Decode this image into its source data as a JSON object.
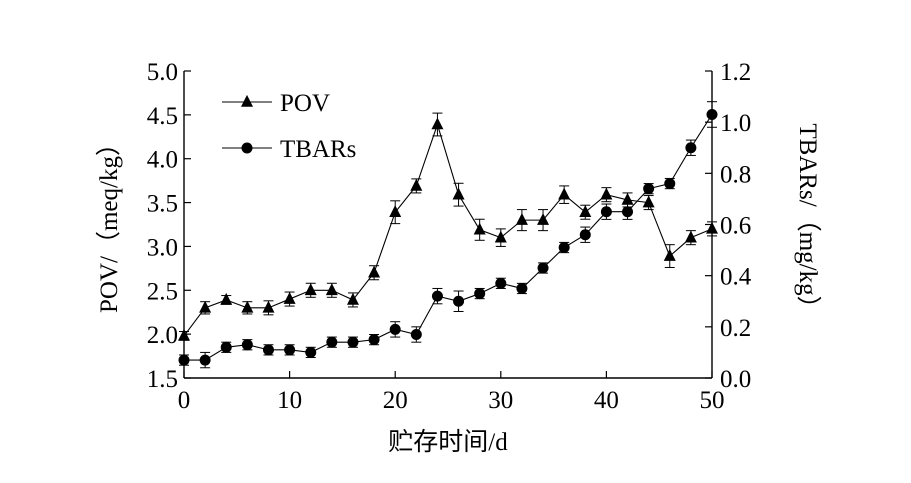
{
  "chart_data": {
    "type": "line",
    "x": [
      0,
      2,
      4,
      6,
      8,
      10,
      12,
      14,
      16,
      18,
      20,
      22,
      24,
      26,
      28,
      30,
      32,
      34,
      36,
      38,
      40,
      42,
      44,
      46,
      48,
      50
    ],
    "xlabel": "贮存时间/d",
    "xlim": [
      0,
      50
    ],
    "xticks": [
      0,
      10,
      20,
      30,
      40,
      50
    ],
    "ylabel_left": "POV/（meq/kg）",
    "ylim_left": [
      1.5,
      5.0
    ],
    "yticks_left": [
      "1.5",
      "2.0",
      "2.5",
      "3.0",
      "3.5",
      "4.0",
      "4.5",
      "5.0"
    ],
    "ylabel_right": "TBARs/（mg/kg）",
    "ylim_right": [
      0.0,
      1.2
    ],
    "yticks_right": [
      "0.0",
      "0.2",
      "0.4",
      "0.6",
      "0.8",
      "1.0",
      "1.2"
    ],
    "legend_position": "top-left",
    "grid": false,
    "series": [
      {
        "name": "POV",
        "axis": "left",
        "marker": "triangle",
        "values": [
          1.98,
          2.3,
          2.39,
          2.3,
          2.3,
          2.4,
          2.5,
          2.5,
          2.39,
          2.7,
          3.39,
          3.69,
          4.39,
          3.59,
          3.19,
          3.1,
          3.3,
          3.3,
          3.59,
          3.39,
          3.59,
          3.53,
          3.5,
          2.89,
          3.1,
          3.2
        ],
        "errors": [
          0.05,
          0.07,
          0.05,
          0.07,
          0.08,
          0.08,
          0.08,
          0.08,
          0.08,
          0.08,
          0.13,
          0.08,
          0.13,
          0.13,
          0.12,
          0.1,
          0.12,
          0.12,
          0.1,
          0.08,
          0.08,
          0.08,
          0.08,
          0.13,
          0.08,
          0.08
        ]
      },
      {
        "name": "TBARs",
        "axis": "right",
        "marker": "circle",
        "values": [
          0.07,
          0.07,
          0.12,
          0.13,
          0.11,
          0.11,
          0.1,
          0.14,
          0.14,
          0.15,
          0.19,
          0.17,
          0.32,
          0.3,
          0.33,
          0.37,
          0.35,
          0.43,
          0.51,
          0.56,
          0.65,
          0.65,
          0.74,
          0.76,
          0.9,
          1.03
        ],
        "errors": [
          0.02,
          0.03,
          0.02,
          0.02,
          0.02,
          0.02,
          0.02,
          0.02,
          0.02,
          0.02,
          0.03,
          0.03,
          0.03,
          0.04,
          0.02,
          0.02,
          0.02,
          0.02,
          0.02,
          0.03,
          0.03,
          0.03,
          0.02,
          0.02,
          0.03,
          0.05
        ]
      }
    ]
  }
}
